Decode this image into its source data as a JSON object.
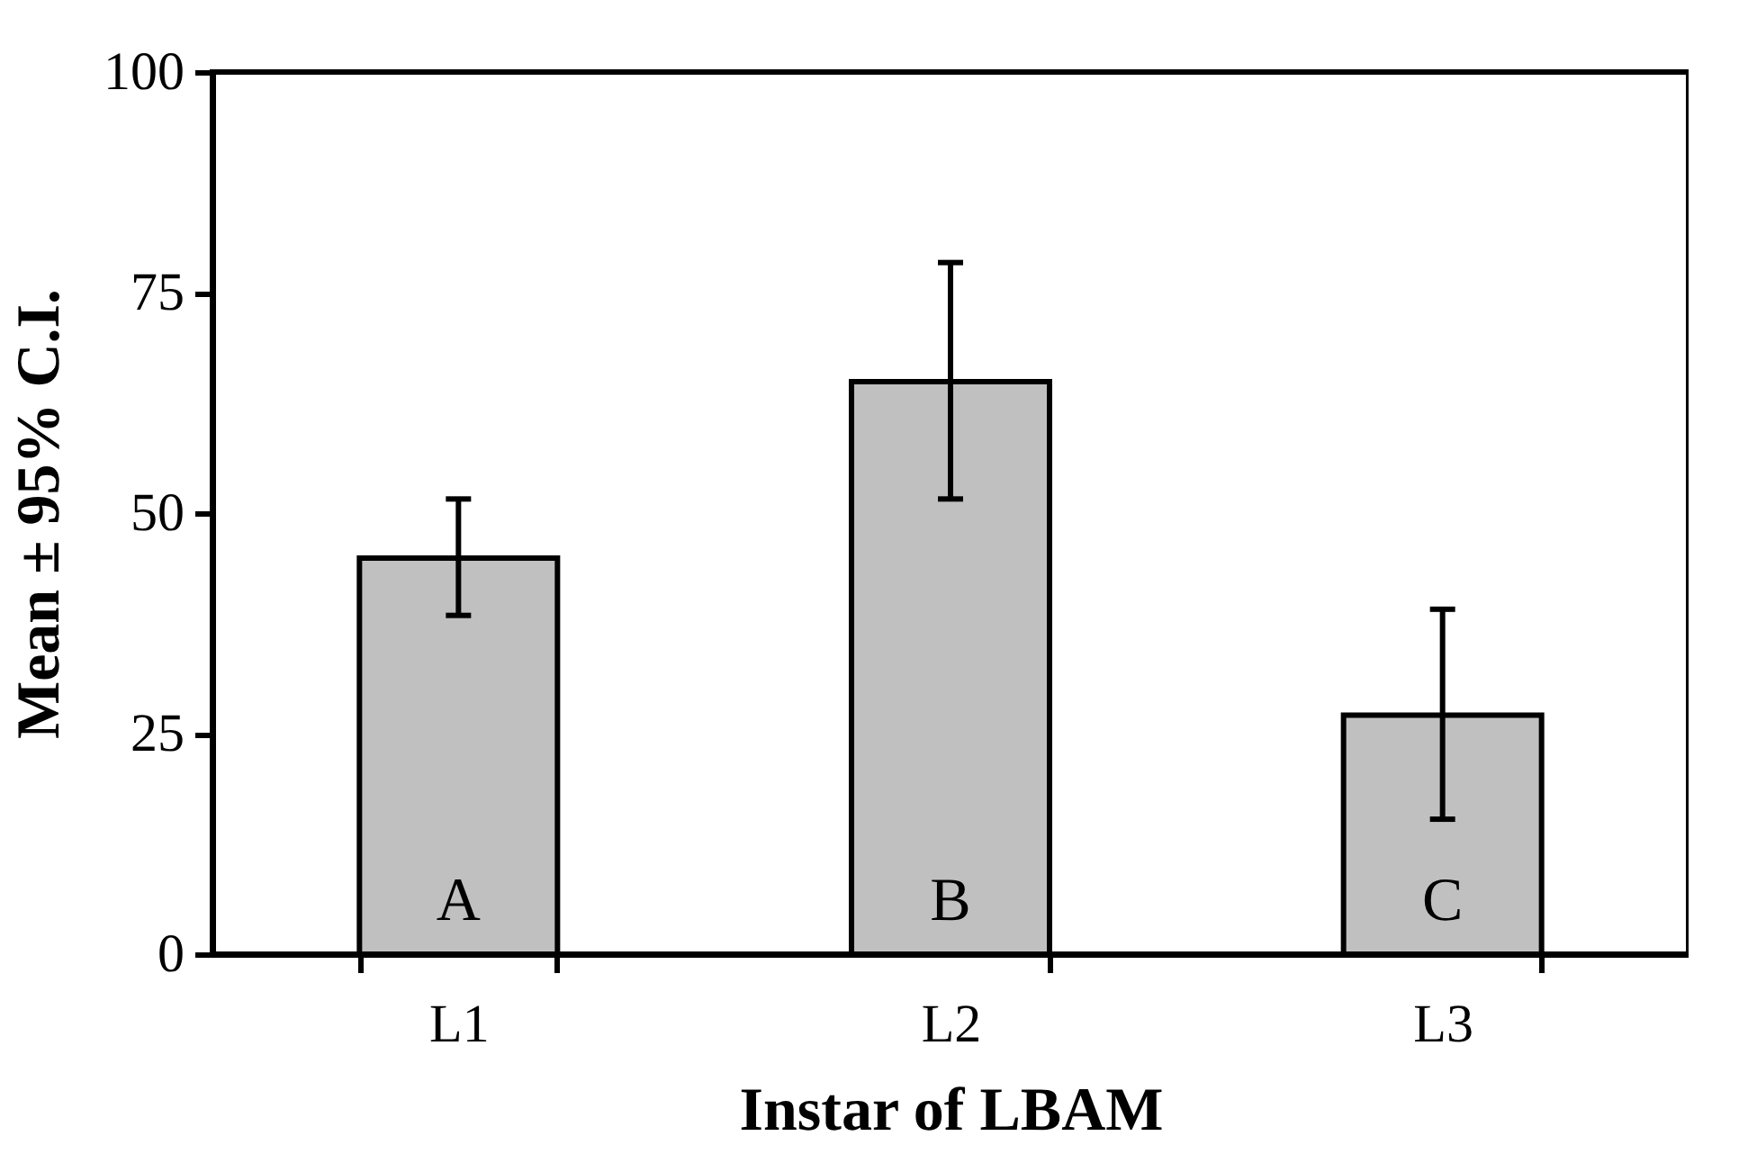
{
  "chart_data": {
    "type": "bar",
    "xlabel": "Instar of LBAM",
    "ylabel": "Mean ± 95% C.I.",
    "categories": [
      "L1",
      "L2",
      "L3"
    ],
    "values": [
      44.9,
      64.9,
      27.1
    ],
    "errors": [
      [
        38.4,
        51.6
      ],
      [
        51.6,
        78.4
      ],
      [
        15.3,
        39.1
      ]
    ],
    "color": "#c0c0c0",
    "ylim": [
      0,
      100
    ],
    "yticks": [
      0,
      25,
      50,
      75,
      100
    ],
    "grid": false,
    "annotations": [
      "A",
      "B",
      "C"
    ]
  }
}
